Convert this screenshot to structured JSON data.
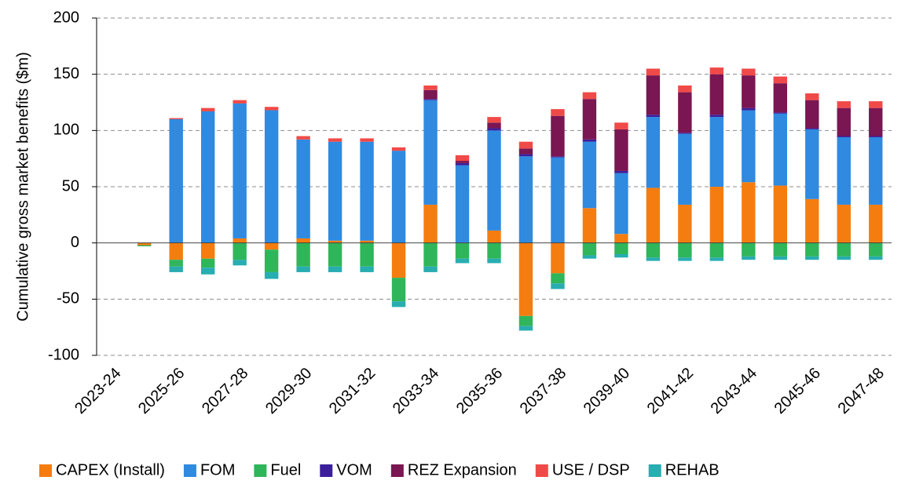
{
  "chart_data": {
    "type": "bar",
    "stacked": true,
    "y_label": "Cumulative gross market benefits ($m)",
    "categories": [
      "2023-24",
      null,
      "2025-26",
      null,
      "2027-28",
      null,
      "2029-30",
      null,
      "2031-32",
      null,
      "2033-34",
      null,
      "2035-36",
      null,
      "2037-38",
      null,
      "2039-40",
      null,
      "2041-42",
      null,
      "2043-44",
      null,
      "2045-46",
      null,
      "2047-48"
    ],
    "ylim": [
      -100,
      200
    ],
    "yticks": [
      -100,
      -50,
      0,
      50,
      100,
      150,
      200
    ],
    "grid": true,
    "legend": "bottom",
    "series": [
      {
        "name": "CAPEX (Install)",
        "color": "#f57d0f",
        "values": [
          0,
          -2,
          -15,
          -14,
          4,
          -6,
          4,
          2,
          2,
          -31,
          34,
          0,
          11,
          -65,
          -27,
          31,
          8,
          49,
          34,
          50,
          54,
          51,
          39,
          34,
          34
        ]
      },
      {
        "name": "FOM",
        "color": "#2f8ae0",
        "values": [
          0,
          0,
          110,
          117,
          120,
          118,
          88,
          88,
          88,
          82,
          93,
          69,
          89,
          77,
          76,
          59,
          54,
          63,
          63,
          62,
          64,
          64,
          62,
          60,
          60
        ]
      },
      {
        "name": "Fuel",
        "color": "#2fb65a",
        "values": [
          0,
          -1,
          -6,
          -8,
          -15,
          -20,
          -21,
          -21,
          -21,
          -21,
          -21,
          -14,
          -14,
          -9,
          -9,
          -11,
          -10,
          -13,
          -13,
          -13,
          -12,
          -12,
          -12,
          -12,
          -12
        ]
      },
      {
        "name": "VOM",
        "color": "#3b1f9a",
        "values": [
          0,
          0,
          0,
          0,
          0,
          0,
          0,
          0,
          0,
          0,
          1,
          2,
          2,
          2,
          1,
          2,
          2,
          2,
          1,
          2,
          2,
          1,
          1,
          1,
          1
        ]
      },
      {
        "name": "REZ Expansion",
        "color": "#7a1652",
        "values": [
          0,
          0,
          0,
          0,
          0,
          0,
          0,
          0,
          0,
          0,
          8,
          2,
          5,
          5,
          36,
          36,
          37,
          35,
          36,
          36,
          29,
          26,
          25,
          25,
          25
        ]
      },
      {
        "name": "USE / DSP",
        "color": "#f04a48",
        "values": [
          0,
          0,
          1,
          3,
          3,
          3,
          3,
          3,
          3,
          3,
          4,
          5,
          5,
          6,
          6,
          6,
          6,
          6,
          6,
          6,
          6,
          6,
          6,
          6,
          6
        ]
      },
      {
        "name": "REHAB",
        "color": "#28adb0",
        "values": [
          0,
          0,
          -5,
          -6,
          -5,
          -6,
          -5,
          -5,
          -5,
          -5,
          -5,
          -4,
          -4,
          -4,
          -5,
          -3,
          -3,
          -3,
          -3,
          -3,
          -3,
          -3,
          -3,
          -3,
          -3
        ]
      }
    ]
  }
}
